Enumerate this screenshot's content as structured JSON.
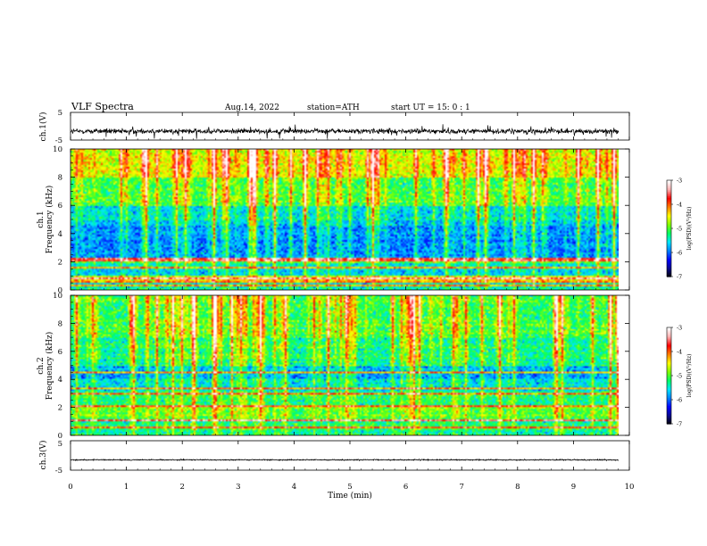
{
  "header": {
    "title": "VLF  Spectra",
    "date": "Aug.14, 2022",
    "station": "station=ATH",
    "start": "start  UT  =    15: 0  : 1"
  },
  "colors": {
    "waveform": "#000000",
    "colormap": [
      "#000000",
      "#0a0a8c",
      "#0000ff",
      "#0080ff",
      "#00e5ff",
      "#00ff66",
      "#80ff00",
      "#ffff00",
      "#ff8000",
      "#ff0000",
      "#ffb0b0",
      "#ffffff"
    ]
  },
  "chart_data": [
    {
      "type": "line",
      "id": "ch1-waveform",
      "ylabel": "ch.1(V)",
      "yticks": [
        "5",
        "-5"
      ],
      "ylim": [
        -5,
        5
      ],
      "xlim": [
        0,
        10
      ],
      "baseline": -1.8,
      "amplitude": 1.6,
      "grid": false
    },
    {
      "type": "heatmap",
      "id": "ch1-spectrogram",
      "ylabel_top": "ch.1",
      "ylabel": "Frequency  (kHz)",
      "yticks": [
        "0",
        "2",
        "4",
        "6",
        "8",
        "10"
      ],
      "ylim": [
        0,
        10
      ],
      "xlim": [
        0,
        9.8
      ],
      "colorbar": {
        "label": "log(PSD)(V²/Hz)",
        "ticks": [
          "-3",
          "-4",
          "-5",
          "-6",
          "-7"
        ],
        "range": [
          -7,
          -3
        ]
      },
      "bands": [
        {
          "f": [
            0,
            0.6
          ],
          "level": -5.5
        },
        {
          "f": [
            0.6,
            1.0
          ],
          "level": -4.6
        },
        {
          "f": [
            1.0,
            1.8
          ],
          "level": -5.6
        },
        {
          "f": [
            1.8,
            2.2
          ],
          "level": -5.0
        },
        {
          "f": [
            2.2,
            4.5
          ],
          "level": -5.9
        },
        {
          "f": [
            4.5,
            6.0
          ],
          "level": -5.6
        },
        {
          "f": [
            6.0,
            8.0
          ],
          "level": -5.1
        },
        {
          "f": [
            8.0,
            10.0
          ],
          "level": -4.6
        }
      ],
      "lines_khz": [
        0.3,
        0.55,
        0.8,
        1.5,
        2.0,
        2.2
      ]
    },
    {
      "type": "heatmap",
      "id": "ch2-spectrogram",
      "ylabel_top": "ch.2",
      "ylabel": "Frequency  (kHz)",
      "yticks": [
        "0",
        "2",
        "4",
        "6",
        "8",
        "10"
      ],
      "ylim": [
        0,
        10
      ],
      "xlim": [
        0,
        9.8
      ],
      "colorbar": {
        "label": "log(PSD)(V²/Hz)",
        "ticks": [
          "-3",
          "-4",
          "-5",
          "-6",
          "-7"
        ],
        "range": [
          -7,
          -3
        ]
      },
      "bands": [
        {
          "f": [
            0,
            1.0
          ],
          "level": -5.3
        },
        {
          "f": [
            1.0,
            2.0
          ],
          "level": -5.0
        },
        {
          "f": [
            2.0,
            3.2
          ],
          "level": -5.3
        },
        {
          "f": [
            3.2,
            4.0
          ],
          "level": -5.6
        },
        {
          "f": [
            4.0,
            5.0
          ],
          "level": -5.8
        },
        {
          "f": [
            5.0,
            7.0
          ],
          "level": -5.3
        },
        {
          "f": [
            7.0,
            10.0
          ],
          "level": -5.1
        }
      ],
      "lines_khz": [
        0.5,
        1.0,
        2.0,
        3.0,
        3.3,
        4.5
      ]
    },
    {
      "type": "line",
      "id": "ch3-waveform",
      "ylabel": "ch.3(V)",
      "yticks": [
        "5",
        "-5"
      ],
      "ylim": [
        -5,
        5
      ],
      "xlim": [
        0,
        10
      ],
      "baseline": -1.5,
      "amplitude": 0.3,
      "grid": false
    }
  ],
  "xaxis": {
    "label": "Time  (min)",
    "ticks": [
      "0",
      "1",
      "2",
      "3",
      "4",
      "5",
      "6",
      "7",
      "8",
      "9",
      "10"
    ],
    "range": [
      0,
      10
    ]
  }
}
